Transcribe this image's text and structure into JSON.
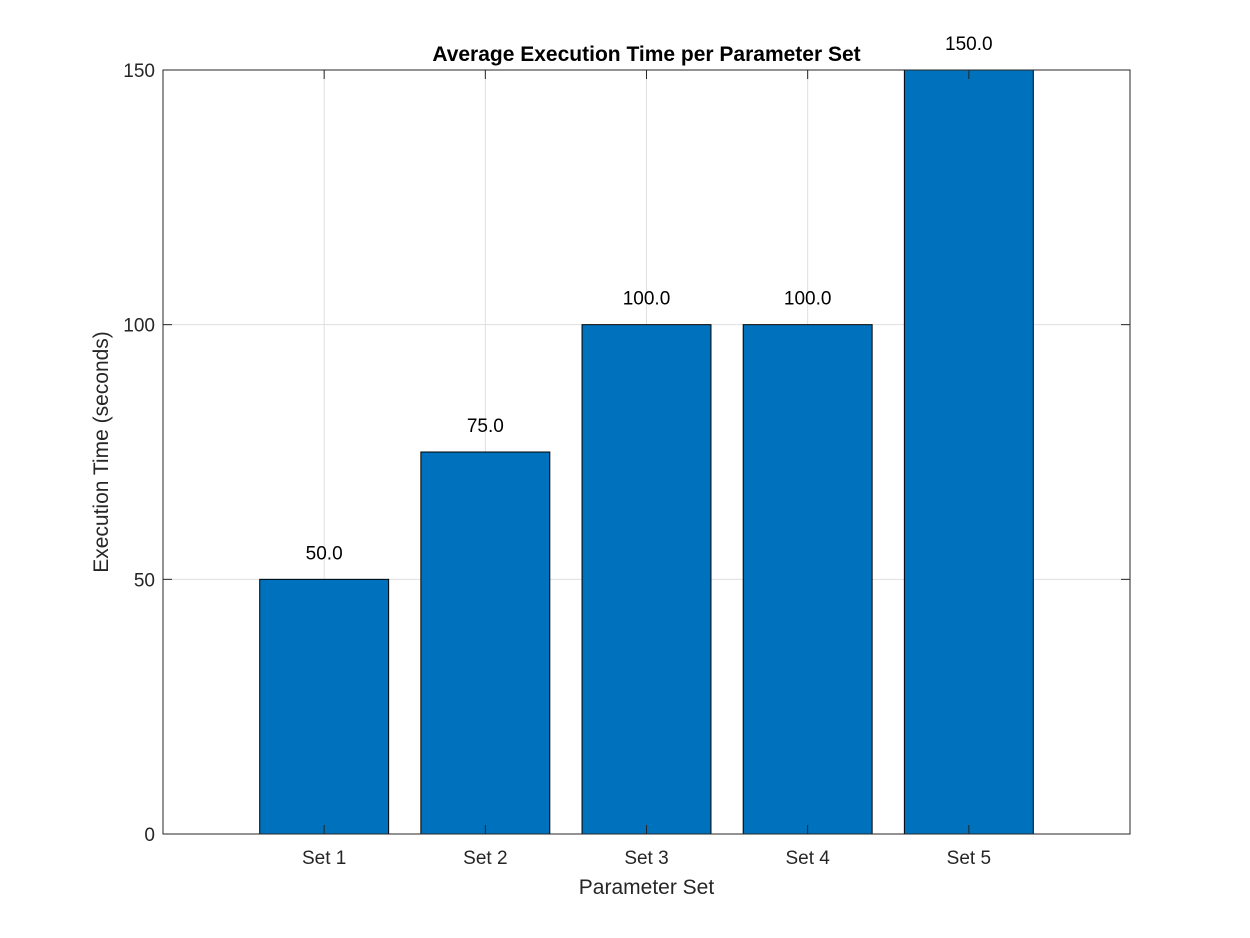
{
  "chart_data": {
    "type": "bar",
    "title": "Average Execution Time per Parameter Set",
    "xlabel": "Parameter Set",
    "ylabel": "Execution Time (seconds)",
    "categories": [
      "Set 1",
      "Set 2",
      "Set 3",
      "Set 4",
      "Set 5"
    ],
    "values": [
      50,
      75,
      100,
      100,
      150
    ],
    "data_labels": [
      "50.0",
      "75.0",
      "100.0",
      "100.0",
      "150.0"
    ],
    "ylim": [
      0,
      150
    ],
    "xlim": [
      0,
      6
    ],
    "yticks": [
      0,
      50,
      100,
      150
    ],
    "ytick_labels": [
      "0",
      "50",
      "100",
      "150"
    ],
    "grid": true,
    "bar_color": "#0072BD"
  }
}
